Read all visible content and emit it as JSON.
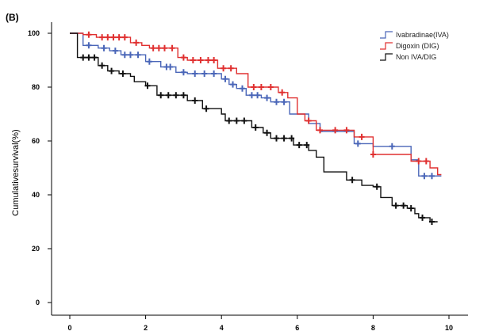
{
  "panel_label": "(B)",
  "chart_data": {
    "type": "line",
    "subtype": "kaplan-meier step",
    "title": "",
    "xlabel": "",
    "ylabel": "Cumulativesurvival(%)",
    "xlim": [
      -0.5,
      10.5
    ],
    "ylim": [
      -6,
      104
    ],
    "x_ticks": [
      0,
      2,
      4,
      6,
      8,
      10
    ],
    "y_ticks": [
      0,
      20,
      40,
      60,
      80,
      100
    ],
    "grid": false,
    "legend_position": "top-right",
    "series": [
      {
        "name": "Ivabradinae(IVA)",
        "color": "#4a66b8",
        "steps": [
          [
            0,
            100
          ],
          [
            0.35,
            100
          ],
          [
            0.35,
            95.5
          ],
          [
            0.75,
            95.5
          ],
          [
            0.75,
            94.5
          ],
          [
            1.05,
            94.5
          ],
          [
            1.05,
            93.5
          ],
          [
            1.35,
            93.5
          ],
          [
            1.35,
            92
          ],
          [
            2.0,
            92
          ],
          [
            2.0,
            89.5
          ],
          [
            2.4,
            89.5
          ],
          [
            2.4,
            87.5
          ],
          [
            2.8,
            87.5
          ],
          [
            2.8,
            85.5
          ],
          [
            3.1,
            85.5
          ],
          [
            3.1,
            85
          ],
          [
            4.0,
            85
          ],
          [
            4.0,
            83
          ],
          [
            4.2,
            83
          ],
          [
            4.2,
            81
          ],
          [
            4.4,
            81
          ],
          [
            4.4,
            79.5
          ],
          [
            4.65,
            79.5
          ],
          [
            4.65,
            77
          ],
          [
            5.05,
            77
          ],
          [
            5.05,
            76
          ],
          [
            5.3,
            76
          ],
          [
            5.3,
            74.5
          ],
          [
            5.8,
            74.5
          ],
          [
            5.8,
            70
          ],
          [
            6.3,
            70
          ],
          [
            6.3,
            66.5
          ],
          [
            6.6,
            66.5
          ],
          [
            6.6,
            63.5
          ],
          [
            7.5,
            63.5
          ],
          [
            7.5,
            59
          ],
          [
            8.0,
            59
          ],
          [
            8.0,
            58
          ],
          [
            9.0,
            58
          ],
          [
            9.0,
            53
          ],
          [
            9.2,
            53
          ],
          [
            9.2,
            47
          ],
          [
            9.8,
            47
          ]
        ],
        "censor": [
          [
            0.5,
            95.5
          ],
          [
            0.9,
            94.5
          ],
          [
            1.2,
            93.5
          ],
          [
            1.45,
            92
          ],
          [
            1.6,
            92
          ],
          [
            1.8,
            92
          ],
          [
            2.1,
            89.5
          ],
          [
            2.55,
            87.5
          ],
          [
            2.65,
            87.5
          ],
          [
            3.0,
            85.5
          ],
          [
            3.3,
            85
          ],
          [
            3.55,
            85
          ],
          [
            3.8,
            85
          ],
          [
            4.1,
            83
          ],
          [
            4.3,
            81
          ],
          [
            4.55,
            79.5
          ],
          [
            4.8,
            77
          ],
          [
            4.95,
            77
          ],
          [
            5.2,
            76
          ],
          [
            5.45,
            74.5
          ],
          [
            5.65,
            74.5
          ],
          [
            7.6,
            59
          ],
          [
            8.5,
            58
          ],
          [
            9.35,
            47
          ],
          [
            9.55,
            47
          ]
        ]
      },
      {
        "name": "Digoxin (DIG)",
        "color": "#e03030",
        "steps": [
          [
            0,
            100
          ],
          [
            0.35,
            100
          ],
          [
            0.35,
            99.5
          ],
          [
            0.7,
            99.5
          ],
          [
            0.7,
            98.5
          ],
          [
            1.6,
            98.5
          ],
          [
            1.6,
            96.5
          ],
          [
            1.9,
            96.5
          ],
          [
            1.9,
            95.5
          ],
          [
            2.1,
            95.5
          ],
          [
            2.1,
            94.5
          ],
          [
            2.85,
            94.5
          ],
          [
            2.85,
            91
          ],
          [
            3.1,
            91
          ],
          [
            3.1,
            90
          ],
          [
            3.9,
            90
          ],
          [
            3.9,
            87
          ],
          [
            4.4,
            87
          ],
          [
            4.4,
            85
          ],
          [
            4.7,
            85
          ],
          [
            4.7,
            80
          ],
          [
            5.5,
            80
          ],
          [
            5.5,
            78
          ],
          [
            5.75,
            78
          ],
          [
            5.75,
            76
          ],
          [
            6.0,
            76
          ],
          [
            6.0,
            70
          ],
          [
            6.2,
            70
          ],
          [
            6.2,
            67.5
          ],
          [
            6.5,
            67.5
          ],
          [
            6.5,
            64
          ],
          [
            7.5,
            64
          ],
          [
            7.5,
            61.5
          ],
          [
            8.0,
            61.5
          ],
          [
            8.0,
            55
          ],
          [
            9.0,
            55
          ],
          [
            9.0,
            52.5
          ],
          [
            9.5,
            52.5
          ],
          [
            9.5,
            50
          ],
          [
            9.7,
            50
          ],
          [
            9.7,
            47.5
          ],
          [
            9.8,
            47.5
          ]
        ],
        "censor": [
          [
            0.5,
            99.5
          ],
          [
            0.85,
            98.5
          ],
          [
            1.0,
            98.5
          ],
          [
            1.15,
            98.5
          ],
          [
            1.3,
            98.5
          ],
          [
            1.45,
            98.5
          ],
          [
            1.75,
            96.5
          ],
          [
            2.2,
            94.5
          ],
          [
            2.35,
            94.5
          ],
          [
            2.5,
            94.5
          ],
          [
            2.7,
            94.5
          ],
          [
            3.0,
            91
          ],
          [
            3.25,
            90
          ],
          [
            3.45,
            90
          ],
          [
            3.65,
            90
          ],
          [
            3.8,
            90
          ],
          [
            4.05,
            87
          ],
          [
            4.25,
            87
          ],
          [
            4.85,
            80
          ],
          [
            5.05,
            80
          ],
          [
            5.3,
            80
          ],
          [
            5.6,
            78
          ],
          [
            6.3,
            67.5
          ],
          [
            6.6,
            64
          ],
          [
            7.0,
            64
          ],
          [
            7.3,
            64
          ],
          [
            7.7,
            61.5
          ],
          [
            8.0,
            55
          ],
          [
            9.2,
            52.5
          ],
          [
            9.4,
            52.5
          ]
        ]
      },
      {
        "name": "Non IVA/DIG",
        "color": "#111111",
        "steps": [
          [
            0,
            100
          ],
          [
            0.2,
            100
          ],
          [
            0.2,
            91
          ],
          [
            0.75,
            91
          ],
          [
            0.75,
            88
          ],
          [
            1.0,
            88
          ],
          [
            1.0,
            86
          ],
          [
            1.3,
            86
          ],
          [
            1.3,
            85
          ],
          [
            1.6,
            85
          ],
          [
            1.6,
            84
          ],
          [
            1.7,
            84
          ],
          [
            1.7,
            82
          ],
          [
            2.0,
            82
          ],
          [
            2.0,
            80.5
          ],
          [
            2.3,
            80.5
          ],
          [
            2.3,
            77
          ],
          [
            3.1,
            77
          ],
          [
            3.1,
            75
          ],
          [
            3.5,
            75
          ],
          [
            3.5,
            72
          ],
          [
            4.0,
            72
          ],
          [
            4.0,
            70
          ],
          [
            4.1,
            70
          ],
          [
            4.1,
            67.5
          ],
          [
            4.8,
            67.5
          ],
          [
            4.8,
            65
          ],
          [
            5.1,
            65
          ],
          [
            5.1,
            63
          ],
          [
            5.3,
            63
          ],
          [
            5.3,
            61
          ],
          [
            5.9,
            61
          ],
          [
            5.9,
            58.5
          ],
          [
            6.3,
            58.5
          ],
          [
            6.3,
            56.5
          ],
          [
            6.5,
            56.5
          ],
          [
            6.5,
            54
          ],
          [
            6.7,
            54
          ],
          [
            6.7,
            48.5
          ],
          [
            7.3,
            48.5
          ],
          [
            7.3,
            45.5
          ],
          [
            7.7,
            45.5
          ],
          [
            7.7,
            43.5
          ],
          [
            8.0,
            43.5
          ],
          [
            8.0,
            43
          ],
          [
            8.2,
            43
          ],
          [
            8.2,
            39
          ],
          [
            8.5,
            39
          ],
          [
            8.5,
            36
          ],
          [
            8.9,
            36
          ],
          [
            8.9,
            35
          ],
          [
            9.1,
            35
          ],
          [
            9.1,
            33
          ],
          [
            9.2,
            33
          ],
          [
            9.2,
            31.5
          ],
          [
            9.5,
            31.5
          ],
          [
            9.5,
            30
          ],
          [
            9.7,
            30
          ]
        ],
        "censor": [
          [
            0.35,
            91
          ],
          [
            0.5,
            91
          ],
          [
            0.65,
            91
          ],
          [
            0.85,
            88
          ],
          [
            1.1,
            86
          ],
          [
            1.4,
            85
          ],
          [
            2.05,
            80.5
          ],
          [
            2.4,
            77
          ],
          [
            2.6,
            77
          ],
          [
            2.8,
            77
          ],
          [
            3.0,
            77
          ],
          [
            3.3,
            75
          ],
          [
            3.6,
            72
          ],
          [
            4.2,
            67.5
          ],
          [
            4.4,
            67.5
          ],
          [
            4.6,
            67.5
          ],
          [
            4.9,
            65
          ],
          [
            5.2,
            63
          ],
          [
            5.45,
            61
          ],
          [
            5.65,
            61
          ],
          [
            5.85,
            61
          ],
          [
            6.05,
            58.5
          ],
          [
            6.25,
            58.5
          ],
          [
            7.45,
            45.5
          ],
          [
            8.1,
            43
          ],
          [
            8.6,
            36
          ],
          [
            8.8,
            36
          ],
          [
            9.0,
            35
          ],
          [
            9.3,
            31.5
          ],
          [
            9.55,
            30
          ]
        ]
      }
    ]
  }
}
